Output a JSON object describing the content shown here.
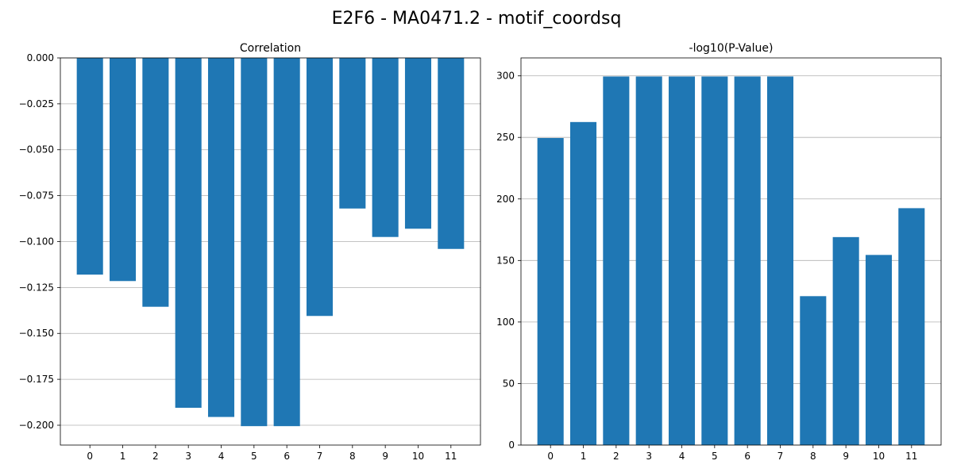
{
  "figure": {
    "suptitle": "E2F6 - MA0471.2 - motif_coordsq"
  },
  "chart_data": [
    {
      "type": "bar",
      "title": "Correlation",
      "xlabel": "",
      "ylabel": "",
      "categories": [
        "0",
        "1",
        "2",
        "3",
        "4",
        "5",
        "6",
        "7",
        "8",
        "9",
        "10",
        "11"
      ],
      "values": [
        -0.118,
        -0.1215,
        -0.1355,
        -0.1905,
        -0.1955,
        -0.2005,
        -0.2005,
        -0.1405,
        -0.082,
        -0.0975,
        -0.093,
        -0.104
      ],
      "ylim": [
        -0.2108,
        0.0
      ],
      "yticks": [
        0.0,
        -0.025,
        -0.05,
        -0.075,
        -0.1,
        -0.125,
        -0.15,
        -0.175,
        -0.2
      ],
      "ytick_labels": [
        "0.000",
        "−0.025",
        "−0.050",
        "−0.075",
        "−0.100",
        "−0.125",
        "−0.150",
        "−0.175",
        "−0.200"
      ],
      "grid": "y",
      "bar_color": "#1f77b4"
    },
    {
      "type": "bar",
      "title": "-log10(P-Value)",
      "xlabel": "",
      "ylabel": "",
      "categories": [
        "0",
        "1",
        "2",
        "3",
        "4",
        "5",
        "6",
        "7",
        "8",
        "9",
        "10",
        "11"
      ],
      "values": [
        249.5,
        262.5,
        299.5,
        299.5,
        299.5,
        299.5,
        299.5,
        299.5,
        121,
        169,
        154.5,
        192.5
      ],
      "ylim": [
        0,
        314.6
      ],
      "yticks": [
        0,
        50,
        100,
        150,
        200,
        250,
        300
      ],
      "ytick_labels": [
        "0",
        "50",
        "100",
        "150",
        "200",
        "250",
        "300"
      ],
      "grid": "y",
      "bar_color": "#1f77b4"
    }
  ]
}
